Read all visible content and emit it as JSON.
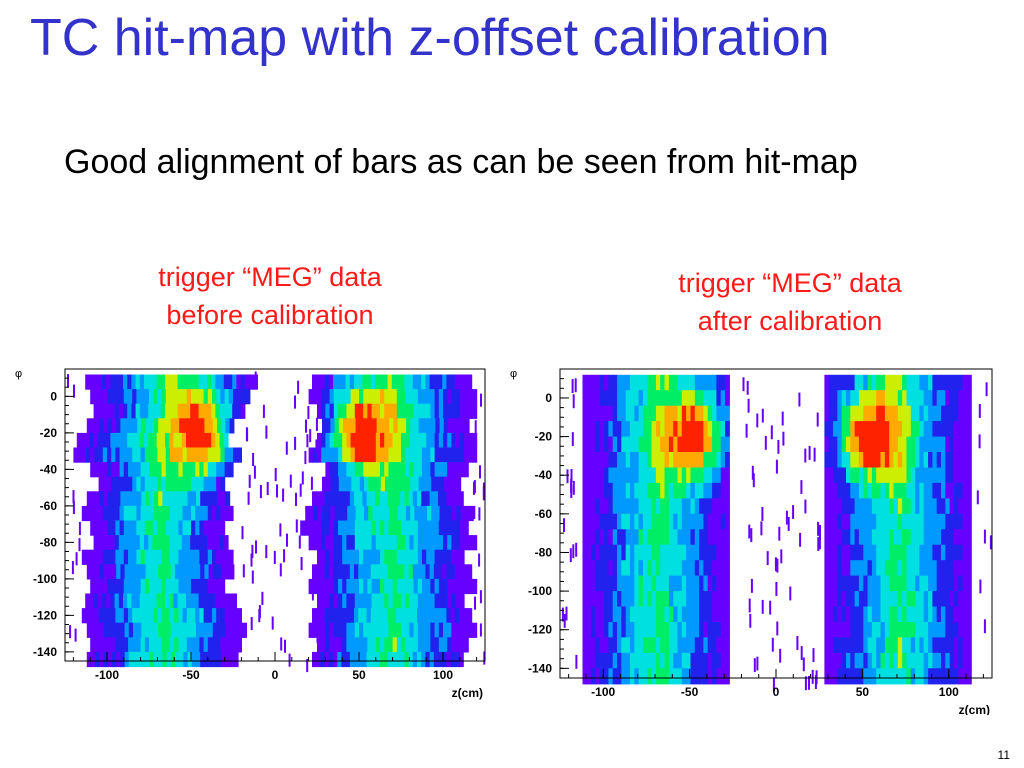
{
  "slide": {
    "title": "TC hit-map with z-offset calibration",
    "subtitle": "Good alignment of bars as can be seen from hit-map",
    "page_number": "11",
    "title_color": "#3333cc",
    "caption_color": "#ff1a1a"
  },
  "captions": [
    {
      "line1": "trigger “MEG” data",
      "line2": "before calibration"
    },
    {
      "line1": "trigger “MEG” data",
      "line2": "after calibration"
    }
  ],
  "chart_data": [
    {
      "type": "heatmap",
      "name": "before",
      "xlabel": "z(cm)",
      "ylabel": "φ",
      "xlim": [
        -125,
        125
      ],
      "ylim": [
        -145,
        15
      ],
      "xticks": [
        -100,
        -50,
        0,
        50,
        100
      ],
      "yticks": [
        0,
        -20,
        -40,
        -60,
        -80,
        -100,
        -120,
        -140
      ],
      "colormap": [
        "#6600ff",
        "#2222ee",
        "#0099ff",
        "#00e0e0",
        "#00ee66",
        "#ccee00",
        "#ffaa00",
        "#ff2200"
      ],
      "hotspots": [
        {
          "z": -45,
          "phi": -20
        },
        {
          "z": 50,
          "phi": -20
        }
      ],
      "bars_z_ranges": [
        {
          "phi": 8,
          "left": [
            -113,
            -12
          ],
          "right": [
            22,
            115
          ]
        },
        {
          "phi": 0,
          "left": [
            -110,
            -15
          ],
          "right": [
            20,
            118
          ]
        },
        {
          "phi": -8,
          "left": [
            -108,
            -20
          ],
          "right": [
            25,
            118
          ]
        },
        {
          "phi": -16,
          "left": [
            -112,
            -25
          ],
          "right": [
            28,
            115
          ]
        },
        {
          "phi": -24,
          "left": [
            -118,
            -28
          ],
          "right": [
            25,
            118
          ]
        },
        {
          "phi": -32,
          "left": [
            -120,
            -20
          ],
          "right": [
            20,
            120
          ]
        },
        {
          "phi": -40,
          "left": [
            -110,
            -25
          ],
          "right": [
            30,
            115
          ]
        },
        {
          "phi": -48,
          "left": [
            -105,
            -30
          ],
          "right": [
            28,
            110
          ]
        },
        {
          "phi": -56,
          "left": [
            -112,
            -28
          ],
          "right": [
            22,
            112
          ]
        },
        {
          "phi": -64,
          "left": [
            -115,
            -25
          ],
          "right": [
            18,
            118
          ]
        },
        {
          "phi": -72,
          "left": [
            -110,
            -30
          ],
          "right": [
            15,
            115
          ]
        },
        {
          "phi": -80,
          "left": [
            -108,
            -28
          ],
          "right": [
            20,
            118
          ]
        },
        {
          "phi": -88,
          "left": [
            -115,
            -25
          ],
          "right": [
            25,
            112
          ]
        },
        {
          "phi": -96,
          "left": [
            -112,
            -25
          ],
          "right": [
            22,
            115
          ]
        },
        {
          "phi": -104,
          "left": [
            -110,
            -30
          ],
          "right": [
            20,
            118
          ]
        },
        {
          "phi": -112,
          "left": [
            -113,
            -25
          ],
          "right": [
            25,
            112
          ]
        },
        {
          "phi": -120,
          "left": [
            -115,
            -20
          ],
          "right": [
            22,
            115
          ]
        },
        {
          "phi": -128,
          "left": [
            -112,
            -18
          ],
          "right": [
            20,
            118
          ]
        },
        {
          "phi": -136,
          "left": [
            -110,
            -20
          ],
          "right": [
            25,
            115
          ]
        },
        {
          "phi": -144,
          "left": [
            -112,
            -22
          ],
          "right": [
            22,
            112
          ]
        }
      ]
    },
    {
      "type": "heatmap",
      "name": "after",
      "xlabel": "z(cm)",
      "ylabel": "φ",
      "xlim": [
        -125,
        125
      ],
      "ylim": [
        -145,
        15
      ],
      "xticks": [
        -100,
        -50,
        0,
        50,
        100
      ],
      "yticks": [
        0,
        -20,
        -40,
        -60,
        -80,
        -100,
        -120,
        -140
      ],
      "colormap": [
        "#6600ff",
        "#2222ee",
        "#0099ff",
        "#00e0e0",
        "#00ee66",
        "#ccee00",
        "#ffaa00",
        "#ff2200"
      ],
      "hotspots": [
        {
          "z": -48,
          "phi": -20
        },
        {
          "z": 52,
          "phi": -20
        }
      ],
      "bars_z_ranges": [
        {
          "phi": 8,
          "left": [
            -112,
            -28
          ],
          "right": [
            28,
            112
          ]
        },
        {
          "phi": 0,
          "left": [
            -112,
            -28
          ],
          "right": [
            28,
            112
          ]
        },
        {
          "phi": -8,
          "left": [
            -112,
            -28
          ],
          "right": [
            28,
            112
          ]
        },
        {
          "phi": -16,
          "left": [
            -112,
            -28
          ],
          "right": [
            28,
            112
          ]
        },
        {
          "phi": -24,
          "left": [
            -112,
            -28
          ],
          "right": [
            28,
            112
          ]
        },
        {
          "phi": -32,
          "left": [
            -112,
            -28
          ],
          "right": [
            28,
            112
          ]
        },
        {
          "phi": -40,
          "left": [
            -112,
            -28
          ],
          "right": [
            28,
            112
          ]
        },
        {
          "phi": -48,
          "left": [
            -112,
            -28
          ],
          "right": [
            28,
            112
          ]
        },
        {
          "phi": -56,
          "left": [
            -112,
            -28
          ],
          "right": [
            28,
            112
          ]
        },
        {
          "phi": -64,
          "left": [
            -112,
            -28
          ],
          "right": [
            28,
            112
          ]
        },
        {
          "phi": -72,
          "left": [
            -112,
            -28
          ],
          "right": [
            28,
            112
          ]
        },
        {
          "phi": -80,
          "left": [
            -112,
            -28
          ],
          "right": [
            28,
            112
          ]
        },
        {
          "phi": -88,
          "left": [
            -112,
            -28
          ],
          "right": [
            28,
            112
          ]
        },
        {
          "phi": -96,
          "left": [
            -112,
            -28
          ],
          "right": [
            28,
            112
          ]
        },
        {
          "phi": -104,
          "left": [
            -112,
            -28
          ],
          "right": [
            28,
            112
          ]
        },
        {
          "phi": -112,
          "left": [
            -112,
            -28
          ],
          "right": [
            28,
            112
          ]
        },
        {
          "phi": -120,
          "left": [
            -112,
            -28
          ],
          "right": [
            28,
            112
          ]
        },
        {
          "phi": -128,
          "left": [
            -112,
            -28
          ],
          "right": [
            28,
            112
          ]
        },
        {
          "phi": -136,
          "left": [
            -112,
            -28
          ],
          "right": [
            28,
            112
          ]
        },
        {
          "phi": -144,
          "left": [
            -112,
            -28
          ],
          "right": [
            28,
            112
          ]
        }
      ]
    }
  ]
}
